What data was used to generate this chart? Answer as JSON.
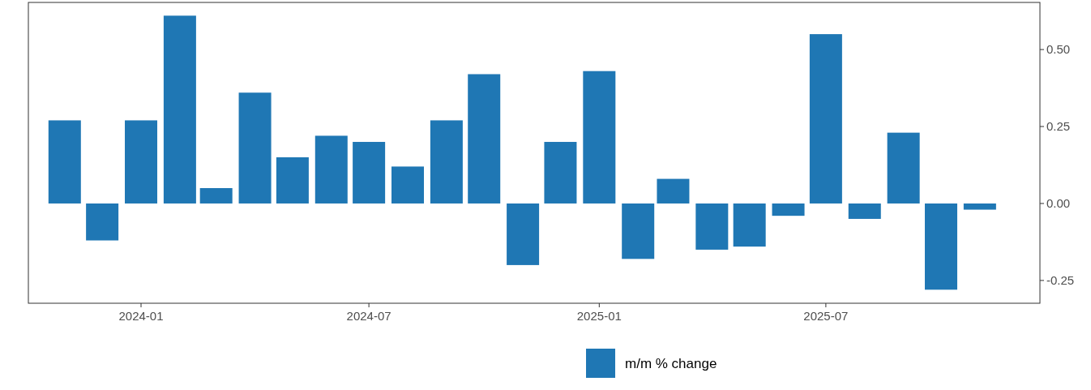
{
  "chart_data": {
    "type": "bar",
    "x": [
      "2023-11",
      "2023-12",
      "2024-01",
      "2024-02",
      "2024-03",
      "2024-04",
      "2024-05",
      "2024-06",
      "2024-07",
      "2024-08",
      "2024-09",
      "2024-10",
      "2024-11",
      "2024-12",
      "2025-01",
      "2025-02",
      "2025-03",
      "2025-04",
      "2025-05",
      "2025-06",
      "2025-07",
      "2025-08",
      "2025-09",
      "2025-10",
      "2025-11"
    ],
    "series": [
      {
        "name": "m/m % change",
        "color": "#1f77b4",
        "values": [
          0.27,
          -0.12,
          0.27,
          0.61,
          0.05,
          0.36,
          0.15,
          0.22,
          0.2,
          0.12,
          0.27,
          0.42,
          -0.2,
          0.2,
          0.43,
          -0.18,
          0.08,
          -0.15,
          -0.14,
          -0.04,
          0.55,
          -0.05,
          0.23,
          -0.28,
          -0.02
        ]
      }
    ],
    "xlim": [
      "2023-10-03",
      "2025-12-19"
    ],
    "xticks": [
      {
        "value": "2024-01",
        "label": "2024-01"
      },
      {
        "value": "2024-07",
        "label": "2024-07"
      },
      {
        "value": "2025-01",
        "label": "2025-01"
      },
      {
        "value": "2025-07",
        "label": "2025-07"
      }
    ],
    "ylim": [
      -0.324,
      0.653
    ],
    "yticks": [
      {
        "value": -0.25,
        "label": "-0.25"
      },
      {
        "value": 0,
        "label": "0.00"
      },
      {
        "value": 0.25,
        "label": "0.25"
      },
      {
        "value": 0.5,
        "label": "0.50"
      }
    ],
    "grid": false,
    "legend": "bottom"
  }
}
